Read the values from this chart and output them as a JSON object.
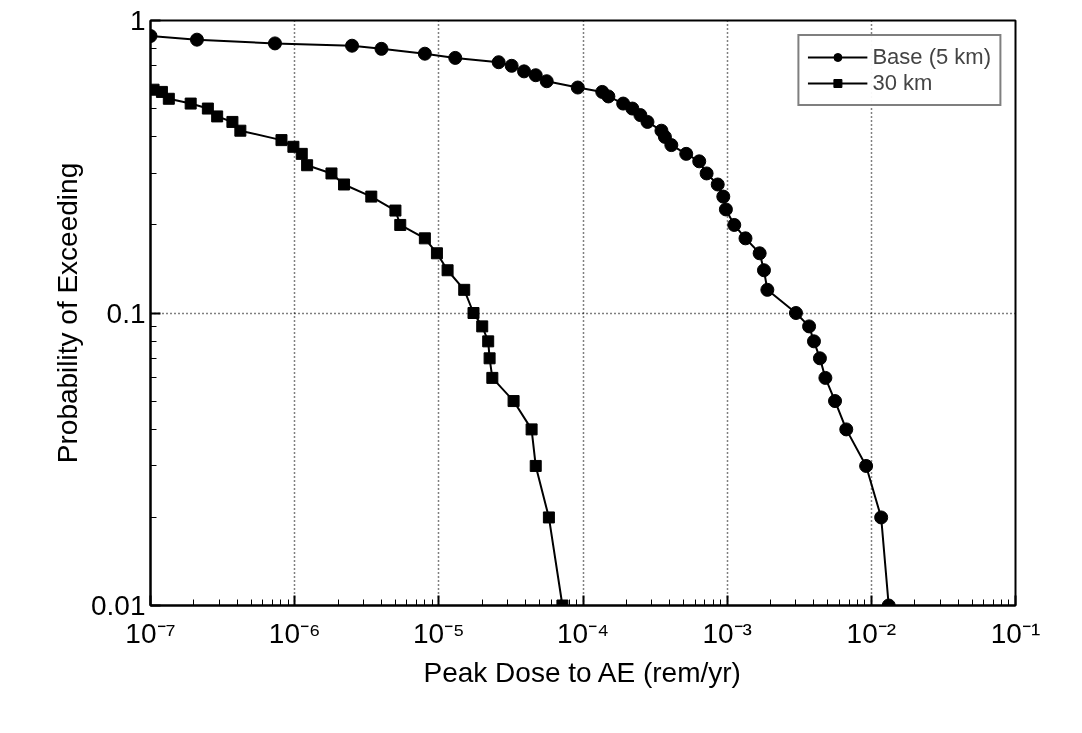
{
  "chart_data": {
    "type": "line",
    "xlabel": "Peak Dose to AE (rem/yr)",
    "ylabel": "Probability of Exceeding",
    "log": "xy",
    "grid": true,
    "legend": "top right",
    "line_style": "solid",
    "xlim": [
      1e-07,
      0.1
    ],
    "ylim": [
      0.01,
      1
    ],
    "xticks": [
      {
        "value": 1e-07,
        "label": "10⁻⁷"
      },
      {
        "value": 1e-06,
        "label": "10⁻⁶"
      },
      {
        "value": 1e-05,
        "label": "10⁻⁵"
      },
      {
        "value": 0.0001,
        "label": "10⁻⁴"
      },
      {
        "value": 0.001,
        "label": "10⁻³"
      },
      {
        "value": 0.01,
        "label": "10⁻²"
      },
      {
        "value": 0.1,
        "label": "10⁻¹"
      }
    ],
    "yticks": [
      0.01,
      0.1,
      1
    ],
    "series": [
      {
        "name": "Base (5 km)",
        "color": "#000000",
        "marker": "circle",
        "x": [
          1e-07,
          2.1e-07,
          7.3e-07,
          2.5e-06,
          4e-06,
          8e-06,
          1.3e-05,
          2.6e-05,
          3.2e-05,
          3.9e-05,
          4.7e-05,
          5.6e-05,
          9.2e-05,
          0.000136,
          0.00015,
          0.00019,
          0.00022,
          0.00025,
          0.00028,
          0.00035,
          0.00037,
          0.00041,
          0.00052,
          0.00064,
          0.00072,
          0.00086,
          0.00094,
          0.00098,
          0.00112,
          0.00134,
          0.00168,
          0.0018,
          0.0019,
          0.003,
          0.0037,
          0.004,
          0.0044,
          0.0048,
          0.0056,
          0.0067,
          0.0092,
          0.0117,
          0.0132
        ],
        "values": [
          0.885,
          0.86,
          0.835,
          0.82,
          0.8,
          0.77,
          0.745,
          0.72,
          0.7,
          0.67,
          0.65,
          0.62,
          0.59,
          0.57,
          0.55,
          0.52,
          0.5,
          0.475,
          0.45,
          0.42,
          0.4,
          0.375,
          0.35,
          0.33,
          0.3,
          0.275,
          0.25,
          0.226,
          0.2,
          0.18,
          0.16,
          0.14,
          0.12,
          0.1,
          0.09,
          0.08,
          0.07,
          0.06,
          0.05,
          0.04,
          0.03,
          0.02,
          0.01
        ]
      },
      {
        "name": "30 km",
        "color": "#000000",
        "marker": "square",
        "x": [
          1.05e-07,
          1.2e-07,
          1.34e-07,
          1.9e-07,
          2.5e-07,
          2.9e-07,
          3.7e-07,
          4.2e-07,
          8.1e-07,
          9.8e-07,
          1.12e-06,
          1.22e-06,
          1.8e-06,
          2.2e-06,
          3.4e-06,
          5e-06,
          5.4e-06,
          8e-06,
          9.7e-06,
          1.15e-05,
          1.5e-05,
          1.74e-05,
          2e-05,
          2.2e-05,
          2.25e-05,
          2.35e-05,
          3.3e-05,
          4.4e-05,
          4.7e-05,
          5.8e-05,
          7.2e-05
        ],
        "values": [
          0.58,
          0.57,
          0.54,
          0.52,
          0.5,
          0.47,
          0.45,
          0.42,
          0.39,
          0.37,
          0.35,
          0.32,
          0.3,
          0.275,
          0.25,
          0.224,
          0.2,
          0.18,
          0.16,
          0.14,
          0.12,
          0.1,
          0.09,
          0.08,
          0.07,
          0.06,
          0.05,
          0.04,
          0.03,
          0.02,
          0.01
        ]
      }
    ]
  }
}
